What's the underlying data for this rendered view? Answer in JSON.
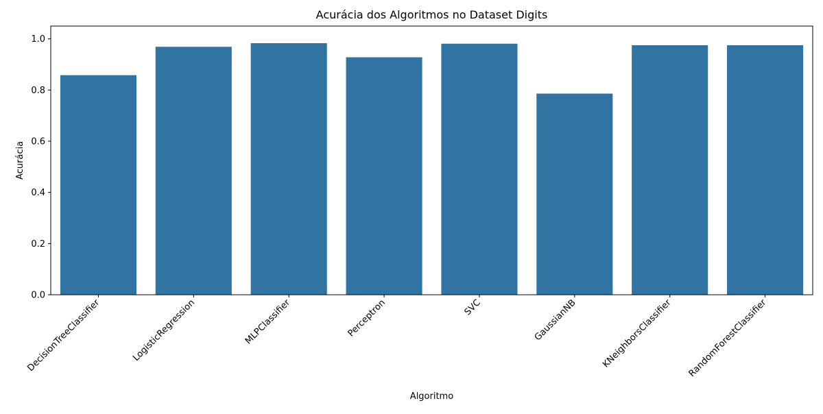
{
  "chart_data": {
    "type": "bar",
    "title": "Acurácia dos Algoritmos no Dataset Digits",
    "xlabel": "Algoritmo",
    "ylabel": "Acurácia",
    "categories": [
      "DecisionTreeClassifier",
      "LogisticRegression",
      "MLPClassifier",
      "Perceptron",
      "SVC",
      "GaussianNB",
      "KNeighborsClassifier",
      "RandomForestClassifier"
    ],
    "values": [
      0.858,
      0.969,
      0.983,
      0.928,
      0.981,
      0.786,
      0.975,
      0.975
    ],
    "ylim": [
      0,
      1.05
    ],
    "yticks": [
      0.0,
      0.2,
      0.4,
      0.6,
      0.8,
      1.0
    ],
    "ytick_labels": [
      "0.0",
      "0.2",
      "0.4",
      "0.6",
      "0.8",
      "1.0"
    ],
    "bar_color": "#3274a1",
    "grid": false,
    "legend": "none",
    "xtick_rotation": 45
  }
}
